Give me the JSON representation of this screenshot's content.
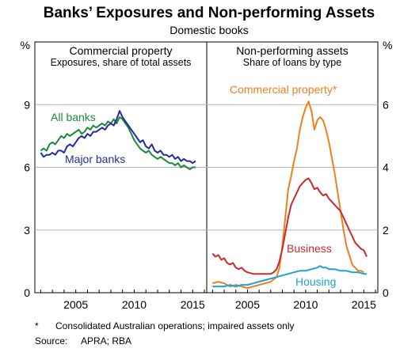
{
  "title": "Banks’ Exposures and Non-performing Assets",
  "subtitle": "Domestic books",
  "footnote": {
    "marker": "*",
    "text": "Consolidated Australian operations; impaired assets only"
  },
  "source": {
    "label": "Source:",
    "text": "APRA; RBA"
  },
  "colors": {
    "all_banks": "#1a8a3a",
    "major_banks": "#1f2d9e",
    "commercial_property": "#f07f1e",
    "business": "#cc2a2a",
    "housing": "#1aa3d4",
    "grid": "#b3b3b3"
  },
  "chart_data": [
    {
      "type": "line",
      "title": "Commercial property",
      "subtitle": "Exposures, share of total assets",
      "unit": "%",
      "ylim": [
        0,
        12
      ],
      "yticks": [
        0,
        3,
        6,
        9
      ],
      "xlim": [
        2001.5,
        2016.2
      ],
      "xticks": [
        2005,
        2010,
        2015
      ],
      "grid": true,
      "series": [
        {
          "name": "All banks",
          "color": "#1a8a3a",
          "x": [
            2002.0,
            2002.25,
            2002.5,
            2002.75,
            2003.0,
            2003.25,
            2003.5,
            2003.75,
            2004.0,
            2004.25,
            2004.5,
            2004.75,
            2005.0,
            2005.25,
            2005.5,
            2005.75,
            2006.0,
            2006.25,
            2006.5,
            2006.75,
            2007.0,
            2007.25,
            2007.5,
            2007.75,
            2008.0,
            2008.25,
            2008.5,
            2008.75,
            2009.0,
            2009.25,
            2009.5,
            2009.75,
            2010.0,
            2010.25,
            2010.5,
            2010.75,
            2011.0,
            2011.25,
            2011.5,
            2011.75,
            2012.0,
            2012.25,
            2012.5,
            2012.75,
            2013.0,
            2013.25,
            2013.5,
            2013.75,
            2014.0,
            2014.25,
            2014.5,
            2014.75,
            2015.0,
            2015.25
          ],
          "values": [
            6.8,
            6.9,
            6.8,
            7.1,
            7.2,
            7.1,
            7.3,
            7.5,
            7.4,
            7.6,
            7.5,
            7.6,
            7.7,
            7.8,
            7.6,
            7.7,
            7.9,
            7.8,
            8.0,
            7.9,
            8.0,
            8.1,
            8.0,
            8.2,
            8.1,
            8.3,
            8.1,
            8.4,
            8.3,
            8.1,
            7.9,
            7.6,
            7.3,
            7.1,
            6.9,
            6.8,
            6.7,
            6.8,
            6.6,
            6.5,
            6.4,
            6.5,
            6.4,
            6.3,
            6.2,
            6.2,
            6.1,
            6.2,
            6.0,
            6.1,
            6.0,
            5.9,
            6.0,
            6.0
          ]
        },
        {
          "name": "Major banks",
          "color": "#1f2d9e",
          "x": [
            2002.0,
            2002.25,
            2002.5,
            2002.75,
            2003.0,
            2003.25,
            2003.5,
            2003.75,
            2004.0,
            2004.25,
            2004.5,
            2004.75,
            2005.0,
            2005.25,
            2005.5,
            2005.75,
            2006.0,
            2006.25,
            2006.5,
            2006.75,
            2007.0,
            2007.25,
            2007.5,
            2007.75,
            2008.0,
            2008.25,
            2008.5,
            2008.75,
            2009.0,
            2009.25,
            2009.5,
            2009.75,
            2010.0,
            2010.25,
            2010.5,
            2010.75,
            2011.0,
            2011.25,
            2011.5,
            2011.75,
            2012.0,
            2012.25,
            2012.5,
            2012.75,
            2013.0,
            2013.25,
            2013.5,
            2013.75,
            2014.0,
            2014.25,
            2014.5,
            2014.75,
            2015.0,
            2015.25
          ],
          "values": [
            6.7,
            6.5,
            6.6,
            6.6,
            6.7,
            6.6,
            6.8,
            6.8,
            6.7,
            7.0,
            7.1,
            7.0,
            7.2,
            7.4,
            7.5,
            7.4,
            7.6,
            7.5,
            7.7,
            7.7,
            7.8,
            7.9,
            7.8,
            8.0,
            8.1,
            8.0,
            8.3,
            8.7,
            8.4,
            8.2,
            8.0,
            7.8,
            7.6,
            7.4,
            7.2,
            7.3,
            7.0,
            6.9,
            7.1,
            6.8,
            6.7,
            6.8,
            6.6,
            6.6,
            6.5,
            6.6,
            6.4,
            6.5,
            6.3,
            6.4,
            6.3,
            6.3,
            6.2,
            6.3
          ]
        }
      ]
    },
    {
      "type": "line",
      "title": "Non-performing assets",
      "subtitle": "Share of loans by type",
      "unit": "%",
      "ylim": [
        0,
        8
      ],
      "yticks": [
        0,
        2,
        4,
        6
      ],
      "xlim": [
        2001.5,
        2016.2
      ],
      "xticks": [
        2005,
        2010,
        2015
      ],
      "grid": true,
      "series": [
        {
          "name": "Commercial property*",
          "color": "#f07f1e",
          "x": [
            2002.0,
            2002.5,
            2003.0,
            2003.5,
            2004.0,
            2004.5,
            2005.0,
            2005.5,
            2006.0,
            2006.5,
            2007.0,
            2007.5,
            2007.75,
            2008.0,
            2008.25,
            2008.5,
            2008.75,
            2009.0,
            2009.25,
            2009.5,
            2009.75,
            2010.0,
            2010.25,
            2010.5,
            2010.75,
            2011.0,
            2011.25,
            2011.5,
            2011.75,
            2012.0,
            2012.25,
            2012.5,
            2012.75,
            2013.0,
            2013.25,
            2013.5,
            2013.75,
            2014.0,
            2014.25,
            2014.5,
            2014.75,
            2015.0
          ],
          "values": [
            0.3,
            0.35,
            0.3,
            0.2,
            0.25,
            0.2,
            0.15,
            0.2,
            0.25,
            0.3,
            0.35,
            0.5,
            0.8,
            1.5,
            2.4,
            3.3,
            3.7,
            4.2,
            4.6,
            5.2,
            5.6,
            5.9,
            6.1,
            5.8,
            5.2,
            5.5,
            5.6,
            5.5,
            5.2,
            4.8,
            4.3,
            3.8,
            3.2,
            2.6,
            2.0,
            1.5,
            1.2,
            0.9,
            0.8,
            0.7,
            0.7,
            0.65
          ]
        },
        {
          "name": "Business",
          "color": "#cc2a2a",
          "x": [
            2002.0,
            2002.25,
            2002.5,
            2002.75,
            2003.0,
            2003.25,
            2003.5,
            2003.75,
            2004.0,
            2004.25,
            2004.5,
            2004.75,
            2005.0,
            2005.5,
            2006.0,
            2006.5,
            2007.0,
            2007.25,
            2007.5,
            2007.75,
            2008.0,
            2008.25,
            2008.5,
            2008.75,
            2009.0,
            2009.25,
            2009.5,
            2009.75,
            2010.0,
            2010.25,
            2010.5,
            2010.75,
            2011.0,
            2011.25,
            2011.5,
            2011.75,
            2012.0,
            2012.25,
            2012.5,
            2012.75,
            2013.0,
            2013.25,
            2013.5,
            2013.75,
            2014.0,
            2014.25,
            2014.5,
            2014.75,
            2015.0,
            2015.25
          ],
          "values": [
            1.25,
            1.15,
            1.2,
            1.05,
            1.1,
            0.95,
            0.9,
            0.95,
            0.8,
            0.75,
            0.8,
            0.7,
            0.65,
            0.6,
            0.6,
            0.6,
            0.6,
            0.65,
            0.75,
            1.0,
            1.4,
            1.9,
            2.4,
            2.8,
            3.0,
            3.2,
            3.4,
            3.5,
            3.6,
            3.65,
            3.5,
            3.3,
            3.35,
            3.2,
            3.1,
            3.15,
            3.0,
            2.9,
            2.8,
            2.7,
            2.6,
            2.4,
            2.2,
            2.0,
            1.8,
            1.6,
            1.5,
            1.4,
            1.35,
            1.15
          ]
        },
        {
          "name": "Housing",
          "color": "#1aa3d4",
          "x": [
            2002.0,
            2002.5,
            2003.0,
            2003.5,
            2004.0,
            2004.5,
            2005.0,
            2005.5,
            2006.0,
            2006.5,
            2007.0,
            2007.5,
            2008.0,
            2008.5,
            2009.0,
            2009.5,
            2010.0,
            2010.5,
            2011.0,
            2011.25,
            2011.5,
            2011.75,
            2012.0,
            2012.5,
            2013.0,
            2013.5,
            2014.0,
            2014.5,
            2015.0,
            2015.25
          ],
          "values": [
            0.2,
            0.2,
            0.2,
            0.25,
            0.2,
            0.25,
            0.25,
            0.3,
            0.35,
            0.4,
            0.45,
            0.5,
            0.55,
            0.6,
            0.65,
            0.7,
            0.7,
            0.75,
            0.8,
            0.85,
            0.8,
            0.8,
            0.75,
            0.75,
            0.7,
            0.7,
            0.65,
            0.65,
            0.6,
            0.6
          ]
        }
      ]
    }
  ]
}
